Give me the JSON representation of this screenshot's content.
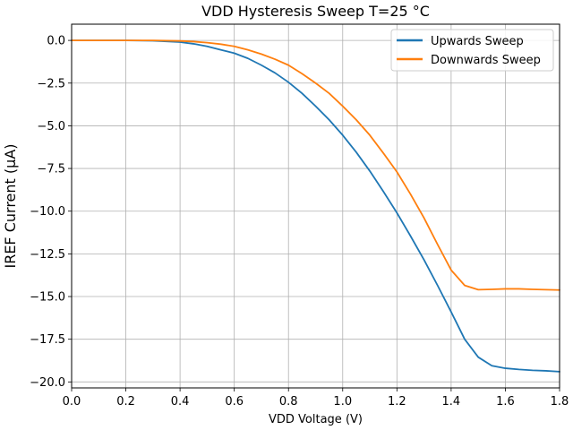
{
  "chart_data": {
    "type": "line",
    "title": "VDD Hysteresis Sweep T=25 °C",
    "xlabel": "VDD Voltage (V)",
    "ylabel": "IREF Current (µA)",
    "xlim": [
      0.0,
      1.8
    ],
    "ylim": [
      -20.35,
      0.95
    ],
    "xticks": [
      0.0,
      0.2,
      0.4,
      0.6,
      0.8,
      1.0,
      1.2,
      1.4,
      1.6,
      1.8
    ],
    "xtick_labels": [
      "0.0",
      "0.2",
      "0.4",
      "0.6",
      "0.8",
      "1.0",
      "1.2",
      "1.4",
      "1.6",
      "1.8"
    ],
    "yticks": [
      0.0,
      -2.5,
      -5.0,
      -7.5,
      -10.0,
      -12.5,
      -15.0,
      -17.5,
      -20.0
    ],
    "ytick_labels": [
      "0.0",
      "−2.5",
      "−5.0",
      "−7.5",
      "−10.0",
      "−12.5",
      "−15.0",
      "−17.5",
      "−20.0"
    ],
    "grid": true,
    "legend_position": "upper-right",
    "series": [
      {
        "name": "Upwards Sweep",
        "color": "#1f77b4",
        "x": [
          0.0,
          0.1,
          0.2,
          0.3,
          0.4,
          0.45,
          0.5,
          0.55,
          0.6,
          0.65,
          0.7,
          0.75,
          0.8,
          0.85,
          0.9,
          0.95,
          1.0,
          1.05,
          1.1,
          1.15,
          1.2,
          1.25,
          1.3,
          1.35,
          1.4,
          1.45,
          1.5,
          1.55,
          1.6,
          1.65,
          1.7,
          1.75,
          1.8
        ],
        "y": [
          0.0,
          0.0,
          0.0,
          -0.02,
          -0.1,
          -0.2,
          -0.35,
          -0.55,
          -0.75,
          -1.05,
          -1.45,
          -1.9,
          -2.45,
          -3.1,
          -3.85,
          -4.65,
          -5.55,
          -6.55,
          -7.65,
          -8.85,
          -10.1,
          -11.45,
          -12.85,
          -14.35,
          -15.9,
          -17.5,
          -18.55,
          -19.05,
          -19.2,
          -19.27,
          -19.32,
          -19.35,
          -19.4
        ]
      },
      {
        "name": "Downwards Sweep",
        "color": "#ff7f0e",
        "x": [
          0.0,
          0.1,
          0.2,
          0.3,
          0.4,
          0.45,
          0.5,
          0.55,
          0.6,
          0.65,
          0.7,
          0.75,
          0.8,
          0.85,
          0.9,
          0.95,
          1.0,
          1.05,
          1.1,
          1.15,
          1.2,
          1.25,
          1.3,
          1.35,
          1.4,
          1.45,
          1.5,
          1.55,
          1.6,
          1.65,
          1.7,
          1.75,
          1.8
        ],
        "y": [
          0.0,
          0.0,
          0.0,
          0.0,
          -0.03,
          -0.07,
          -0.13,
          -0.22,
          -0.35,
          -0.55,
          -0.8,
          -1.1,
          -1.45,
          -1.95,
          -2.5,
          -3.1,
          -3.85,
          -4.65,
          -5.55,
          -6.6,
          -7.7,
          -9.0,
          -10.4,
          -11.95,
          -13.45,
          -14.35,
          -14.6,
          -14.58,
          -14.55,
          -14.55,
          -14.58,
          -14.6,
          -14.62
        ]
      }
    ]
  }
}
